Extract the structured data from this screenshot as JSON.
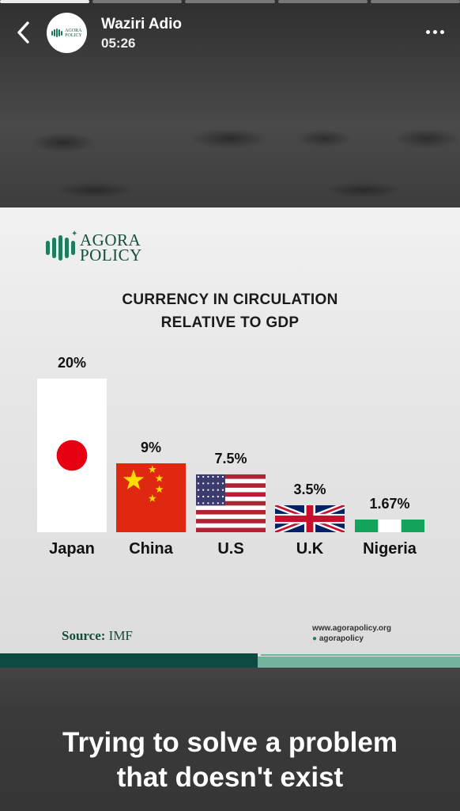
{
  "story": {
    "author": "Waziri Adio",
    "time": "05:26",
    "avatar_text": [
      "AGORA",
      "POLICY"
    ],
    "caption": [
      "Trying to solve a problem",
      "that doesn't exist"
    ],
    "progress_segments": 5,
    "active_segment": 0
  },
  "icons": {
    "back": "chevron-left-icon",
    "more": "more-dots-icon",
    "logo": "agora-policy-logo"
  },
  "card": {
    "logo_text": [
      "AGORA",
      "POLICY"
    ],
    "title_lines": [
      "CURRENCY IN CIRCULATION",
      "RELATIVE TO GDP"
    ],
    "source_label": "Source:",
    "source_value": "IMF",
    "website": "www.agorapolicy.org",
    "instagram": "agorapolicy"
  },
  "colors": {
    "brand_green": "#1f7d5f",
    "brand_dark": "#0d4a44",
    "brand_light": "#74b49c"
  },
  "chart_data": {
    "type": "bar",
    "title": "CURRENCY IN CIRCULATION RELATIVE TO GDP",
    "categories": [
      "Japan",
      "China",
      "U.S",
      "U.K",
      "Nigeria"
    ],
    "values": [
      20,
      9,
      7.5,
      3.5,
      1.67
    ],
    "value_labels": [
      "20%",
      "9%",
      "7.5%",
      "3.5%",
      "1.67%"
    ],
    "bar_style": [
      "flag-japan",
      "flag-china",
      "flag-usa",
      "flag-uk",
      "flag-nigeria"
    ],
    "ylim": [
      0,
      20
    ],
    "grid": false,
    "legend": "none"
  }
}
